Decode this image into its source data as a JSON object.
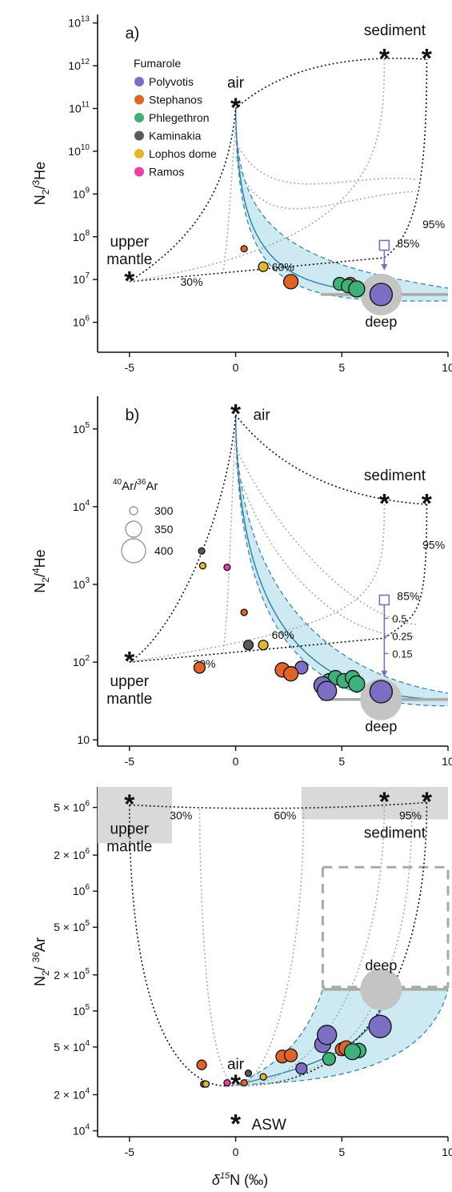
{
  "figure": {
    "xlabel": "δ15N (‰)",
    "xlabel_main": "δ",
    "xlabel_sup": "15",
    "xlabel_rest": "N (‰)"
  },
  "legend": {
    "title": "Fumarole",
    "items": [
      {
        "name": "Polyvotis",
        "color": "#7b6fc4"
      },
      {
        "name": "Stephanos",
        "color": "#e0632a"
      },
      {
        "name": "Phlegethron",
        "color": "#3fb07a"
      },
      {
        "name": "Kaminakia",
        "color": "#5a5a5a"
      },
      {
        "name": "Lophos dome",
        "color": "#e4b52e"
      },
      {
        "name": "Ramos",
        "color": "#e63fa6"
      }
    ],
    "size_title": "40Ar/36Ar",
    "size_title_sup1": "40",
    "size_title_main1": "Ar/",
    "size_title_sup2": "36",
    "size_title_main2": "Ar",
    "size_values": [
      "300",
      "350",
      "400"
    ]
  },
  "chart_data": [
    {
      "panel_label": "a)",
      "type": "scatter",
      "xlim": [
        -6.5,
        10
      ],
      "ylim": [
        5.3,
        13.2
      ],
      "y_scale": "log",
      "xticks": [
        "-5",
        "0",
        "5",
        "10"
      ],
      "yticks": [
        {
          "base": "10",
          "exp": "6"
        },
        {
          "base": "10",
          "exp": "7"
        },
        {
          "base": "10",
          "exp": "8"
        },
        {
          "base": "10",
          "exp": "9"
        },
        {
          "base": "10",
          "exp": "10"
        },
        {
          "base": "10",
          "exp": "11"
        },
        {
          "base": "10",
          "exp": "12"
        },
        {
          "base": "10",
          "exp": "13"
        }
      ],
      "ylabel_parts": {
        "a": "N",
        "sub": "2",
        "b": "/",
        "sup": "3",
        "c": "He"
      },
      "endmembers": [
        {
          "label": "air",
          "x": 0,
          "y": 11.0
        },
        {
          "label": "sediment",
          "x": 9,
          "y": 12.15
        },
        {
          "label": "upper mantle",
          "x": -5,
          "y": 6.95
        },
        {
          "label": "",
          "x": 7,
          "y": 12.15,
          "color": "gray"
        }
      ],
      "mixing_labels": [
        "30%",
        "60%",
        "85%",
        "95%"
      ],
      "deep_label": "deep",
      "deep": {
        "x": 6.85,
        "y": 6.65
      },
      "open_square": {
        "x": 7,
        "y": 7.8
      },
      "points": [
        {
          "x": 0.4,
          "y": 7.72,
          "fumarole": "Stephanos",
          "ratio": 300
        },
        {
          "x": 1.3,
          "y": 7.3,
          "fumarole": "Lophos dome",
          "ratio": 320
        },
        {
          "x": 2.6,
          "y": 6.95,
          "fumarole": "Stephanos",
          "ratio": 350
        },
        {
          "x": 4.9,
          "y": 6.9,
          "fumarole": "Phlegethron",
          "ratio": 340
        },
        {
          "x": 5.3,
          "y": 6.85,
          "fumarole": "Phlegethron",
          "ratio": 345
        },
        {
          "x": 5.4,
          "y": 6.9,
          "fumarole": "Stephanos",
          "ratio": 340
        },
        {
          "x": 5.7,
          "y": 6.78,
          "fumarole": "Phlegethron",
          "ratio": 360
        },
        {
          "x": 6.85,
          "y": 6.65,
          "fumarole": "Polyvotis",
          "ratio": 400
        }
      ]
    },
    {
      "panel_label": "b)",
      "type": "scatter",
      "xlim": [
        -6.5,
        10
      ],
      "ylim": [
        0.92,
        5.42
      ],
      "y_scale": "log",
      "xticks": [
        "-5",
        "0",
        "5",
        "10"
      ],
      "yticks": [
        {
          "base": "10",
          "exp": ""
        },
        {
          "base": "10",
          "exp": "2"
        },
        {
          "base": "10",
          "exp": "3"
        },
        {
          "base": "10",
          "exp": "4"
        },
        {
          "base": "10",
          "exp": "5"
        }
      ],
      "ylabel_parts": {
        "a": "N",
        "sub": "2",
        "b": "/",
        "sup": "4",
        "c": "He"
      },
      "endmembers": [
        {
          "label": "air",
          "x": 0,
          "y": 5.18
        },
        {
          "label": "sediment",
          "x": 9,
          "y": 4.03
        },
        {
          "label": "upper mantle",
          "x": -5,
          "y": 2.0
        },
        {
          "label": "",
          "x": 7,
          "y": 4.03,
          "color": "gray"
        }
      ],
      "mixing_labels": [
        "30%",
        "60%",
        "85%",
        "95%"
      ],
      "arrow_labels": [
        "0.5",
        "0.25",
        "0.15"
      ],
      "deep_label": "deep",
      "deep": {
        "x": 6.85,
        "y": 1.52
      },
      "open_square": {
        "x": 7,
        "y": 2.8
      },
      "points": [
        {
          "x": -1.7,
          "y": 1.93,
          "fumarole": "Stephanos",
          "ratio": 330
        },
        {
          "x": -1.6,
          "y": 3.43,
          "fumarole": "Kaminakia",
          "ratio": 300
        },
        {
          "x": -1.55,
          "y": 3.24,
          "fumarole": "Lophos dome",
          "ratio": 300
        },
        {
          "x": -0.4,
          "y": 3.22,
          "fumarole": "Ramos",
          "ratio": 300
        },
        {
          "x": 0.4,
          "y": 2.64,
          "fumarole": "Stephanos",
          "ratio": 300
        },
        {
          "x": 0.6,
          "y": 2.22,
          "fumarole": "Kaminakia",
          "ratio": 320
        },
        {
          "x": 1.3,
          "y": 2.22,
          "fumarole": "Lophos dome",
          "ratio": 320
        },
        {
          "x": 2.2,
          "y": 1.9,
          "fumarole": "Stephanos",
          "ratio": 350
        },
        {
          "x": 2.6,
          "y": 1.85,
          "fumarole": "Stephanos",
          "ratio": 350
        },
        {
          "x": 3.1,
          "y": 1.93,
          "fumarole": "Polyvotis",
          "ratio": 340
        },
        {
          "x": 4.1,
          "y": 1.7,
          "fumarole": "Polyvotis",
          "ratio": 370
        },
        {
          "x": 4.4,
          "y": 1.76,
          "fumarole": "Phlegethron",
          "ratio": 350
        },
        {
          "x": 4.3,
          "y": 1.63,
          "fumarole": "Polyvotis",
          "ratio": 380
        },
        {
          "x": 4.7,
          "y": 1.8,
          "fumarole": "Phlegethron",
          "ratio": 350
        },
        {
          "x": 5.1,
          "y": 1.76,
          "fumarole": "Phlegethron",
          "ratio": 350
        },
        {
          "x": 5.5,
          "y": 1.8,
          "fumarole": "Phlegethron",
          "ratio": 350
        },
        {
          "x": 5.7,
          "y": 1.72,
          "fumarole": "Phlegethron",
          "ratio": 360
        },
        {
          "x": 6.85,
          "y": 1.62,
          "fumarole": "Polyvotis",
          "ratio": 400
        }
      ]
    },
    {
      "panel_label": "c)",
      "type": "scatter",
      "xlim": [
        -6.5,
        10
      ],
      "ylim": [
        3.95,
        6.87
      ],
      "y_scale": "log",
      "xticks": [
        "-5",
        "0",
        "5",
        "10"
      ],
      "yticks": [
        {
          "m": "",
          "base": "10",
          "exp": "4",
          "v": 4.0
        },
        {
          "m": "2 × ",
          "base": "10",
          "exp": "4",
          "v": 4.301
        },
        {
          "m": "5 × ",
          "base": "10",
          "exp": "4",
          "v": 4.699
        },
        {
          "m": "",
          "base": "10",
          "exp": "5",
          "v": 5.0
        },
        {
          "m": "2 × ",
          "base": "10",
          "exp": "5",
          "v": 5.301
        },
        {
          "m": "5 × ",
          "base": "10",
          "exp": "5",
          "v": 5.699
        },
        {
          "m": "",
          "base": "10",
          "exp": "6",
          "v": 6.0
        },
        {
          "m": "2 × ",
          "base": "10",
          "exp": "6",
          "v": 6.301
        },
        {
          "m": "5 × ",
          "base": "10",
          "exp": "6",
          "v": 6.699
        }
      ],
      "ylabel_parts": {
        "a": "N",
        "sub": "2",
        "b": "/ ",
        "sup": "36",
        "c": "Ar"
      },
      "endmembers": [
        {
          "label": "air",
          "x": 0,
          "y": 4.38
        },
        {
          "label": "ASW",
          "x": 0,
          "y": 4.05
        },
        {
          "label": "upper mantle",
          "x": -5,
          "y": 6.72
        },
        {
          "label": "sediment",
          "x": 9,
          "y": 6.74
        },
        {
          "label": "",
          "x": 7,
          "y": 6.74,
          "color": "gray"
        }
      ],
      "mixing_labels": [
        "30%",
        "60%",
        "95%"
      ],
      "deep_label": "deep",
      "deep": {
        "x": 6.85,
        "y": 5.18
      },
      "points": [
        {
          "x": -1.6,
          "y": 4.55,
          "fumarole": "Stephanos",
          "ratio": 320
        },
        {
          "x": -1.5,
          "y": 4.39,
          "fumarole": "Kaminakia",
          "ratio": 300
        },
        {
          "x": -1.4,
          "y": 4.39,
          "fumarole": "Lophos dome",
          "ratio": 300
        },
        {
          "x": -0.4,
          "y": 4.4,
          "fumarole": "Ramos",
          "ratio": 300
        },
        {
          "x": 0.4,
          "y": 4.4,
          "fumarole": "Stephanos",
          "ratio": 300
        },
        {
          "x": 0.6,
          "y": 4.48,
          "fumarole": "Kaminakia",
          "ratio": 300
        },
        {
          "x": 1.3,
          "y": 4.45,
          "fumarole": "Lophos dome",
          "ratio": 300
        },
        {
          "x": 2.2,
          "y": 4.62,
          "fumarole": "Stephanos",
          "ratio": 340
        },
        {
          "x": 2.6,
          "y": 4.63,
          "fumarole": "Stephanos",
          "ratio": 340
        },
        {
          "x": 3.1,
          "y": 4.52,
          "fumarole": "Polyvotis",
          "ratio": 330
        },
        {
          "x": 4.1,
          "y": 4.72,
          "fumarole": "Polyvotis",
          "ratio": 360
        },
        {
          "x": 4.3,
          "y": 4.8,
          "fumarole": "Polyvotis",
          "ratio": 380
        },
        {
          "x": 4.4,
          "y": 4.6,
          "fumarole": "Phlegethron",
          "ratio": 340
        },
        {
          "x": 5.0,
          "y": 4.68,
          "fumarole": "Stephanos",
          "ratio": 340
        },
        {
          "x": 5.2,
          "y": 4.69,
          "fumarole": "Stephanos",
          "ratio": 350
        },
        {
          "x": 5.5,
          "y": 4.66,
          "fumarole": "Phlegethron",
          "ratio": 360
        },
        {
          "x": 5.8,
          "y": 4.67,
          "fumarole": "Phlegethron",
          "ratio": 350
        },
        {
          "x": 6.8,
          "y": 4.87,
          "fumarole": "Polyvotis",
          "ratio": 400
        }
      ]
    }
  ]
}
